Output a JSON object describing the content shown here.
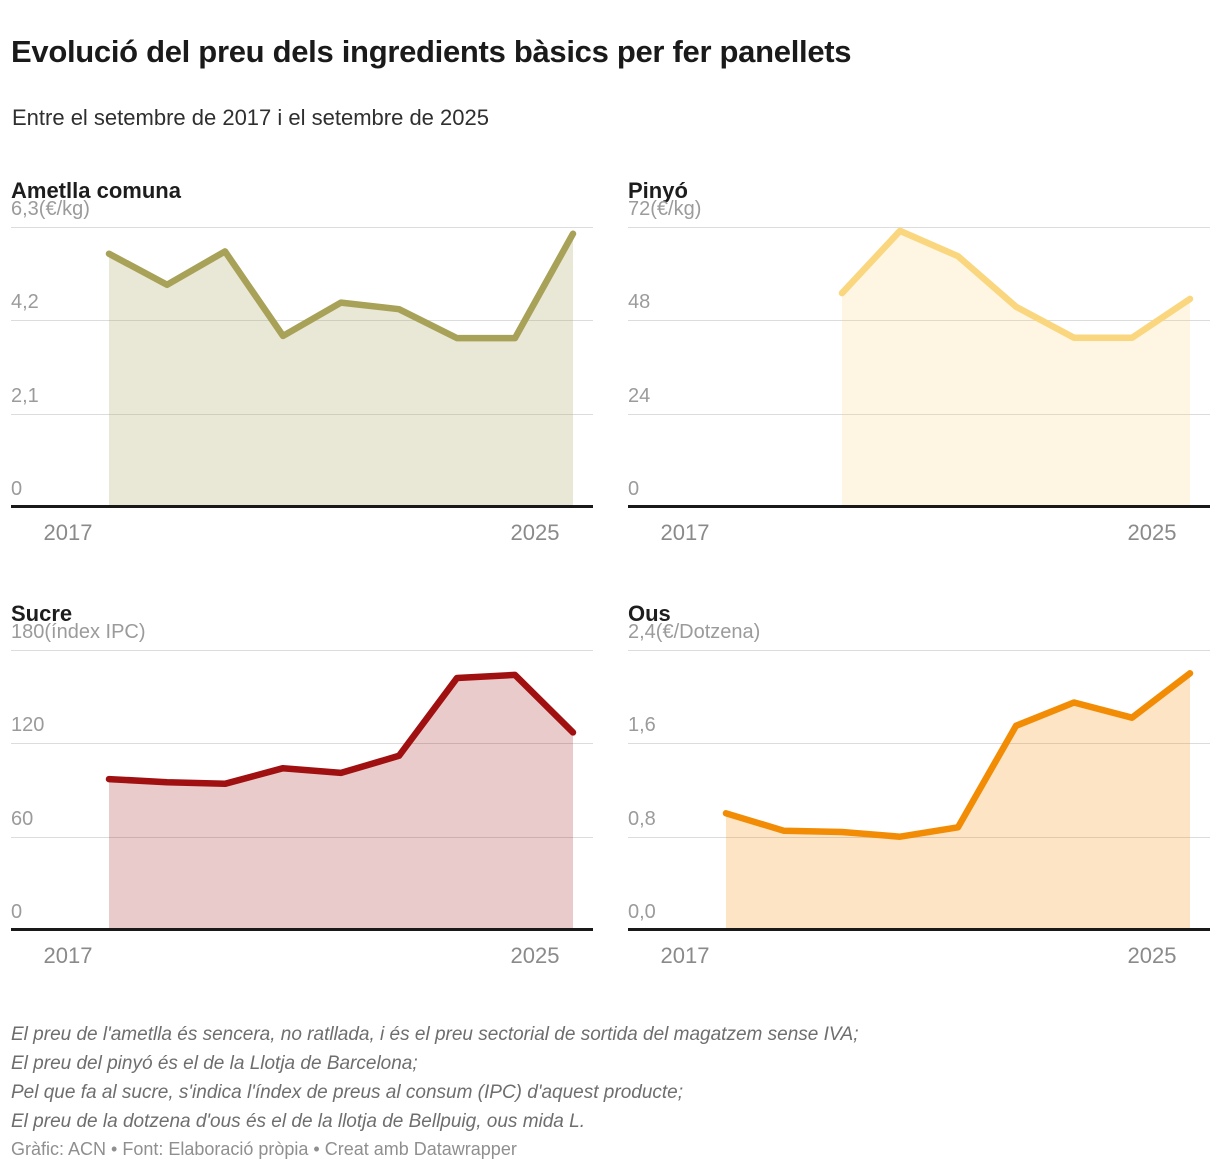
{
  "header": {
    "title": "Evolució del preu dels ingredients bàsics per fer panellets",
    "subtitle": "Entre el setembre de 2017 i el setembre de 2025"
  },
  "chart_data": [
    {
      "id": "ametlla-comuna",
      "type": "area",
      "title": "Ametlla comuna",
      "unit": "€/kg",
      "ylabel": "6,3(€/kg)",
      "y_ticks": [
        0,
        2.1,
        4.2,
        6.3
      ],
      "y_tick_labels": [
        "0",
        "2,1",
        "4,2",
        "6,3(€/kg)"
      ],
      "ylim": [
        0,
        6.3
      ],
      "x_years": [
        2017,
        2018,
        2019,
        2020,
        2021,
        2022,
        2023,
        2024,
        2025
      ],
      "values": [
        5.7,
        5.0,
        5.75,
        3.85,
        4.6,
        4.45,
        3.8,
        3.8,
        6.15
      ],
      "x_tick_labels": [
        "2017",
        "2025"
      ],
      "line_color": "#a8a158",
      "fill_color": "rgba(168,161,88,0.25)",
      "grid": true
    },
    {
      "id": "pinyo",
      "type": "area",
      "title": "Pinyó",
      "unit": "€/kg",
      "ylabel": "72(€/kg)",
      "y_ticks": [
        0,
        24,
        48,
        72
      ],
      "y_tick_labels": [
        "0",
        "24",
        "48",
        "72(€/kg)"
      ],
      "ylim": [
        0,
        72
      ],
      "x_years": [
        2019,
        2020,
        2021,
        2022,
        2023,
        2024,
        2025
      ],
      "values": [
        55,
        71,
        64.5,
        51.5,
        43.5,
        43.5,
        53.5
      ],
      "x_tick_labels": [
        "2017",
        "2025"
      ],
      "line_color": "#fad77f",
      "fill_color": "rgba(250,215,127,0.22)",
      "grid": true
    },
    {
      "id": "sucre",
      "type": "area",
      "title": "Sucre",
      "unit": "índex IPC",
      "ylabel": "180(índex IPC)",
      "y_ticks": [
        0,
        60,
        120,
        180
      ],
      "y_tick_labels": [
        "0",
        "60",
        "120",
        "180(índex IPC)"
      ],
      "ylim": [
        0,
        180
      ],
      "x_years": [
        2017,
        2018,
        2019,
        2020,
        2021,
        2022,
        2023,
        2024,
        2025
      ],
      "values": [
        97,
        95,
        94,
        104,
        101,
        112,
        162,
        164,
        127
      ],
      "x_tick_labels": [
        "2017",
        "2025"
      ],
      "line_color": "#a01010",
      "fill_color": "rgba(160,16,16,0.22)",
      "grid": true
    },
    {
      "id": "ous",
      "type": "area",
      "title": "Ous",
      "unit": "€/Dotzena",
      "ylabel": "2,4(€/Dotzena)",
      "y_ticks": [
        0.0,
        0.8,
        1.6,
        2.4
      ],
      "y_tick_labels": [
        "0,0",
        "0,8",
        "1,6",
        "2,4(€/Dotzena)"
      ],
      "ylim": [
        0,
        2.4
      ],
      "x_years": [
        2017,
        2018,
        2019,
        2020,
        2021,
        2022,
        2023,
        2024,
        2025
      ],
      "values": [
        1.0,
        0.85,
        0.84,
        0.8,
        0.88,
        1.75,
        1.95,
        1.82,
        2.2
      ],
      "x_tick_labels": [
        "2017",
        "2025"
      ],
      "line_color": "#f28c05",
      "fill_color": "rgba(242,140,5,0.23)",
      "grid": true
    }
  ],
  "footnotes": [
    "El preu de l'ametlla és sencera, no ratllada, i és el preu sectorial de sortida del magatzem sense IVA;",
    "El preu del pinyó és el de la Llotja de Barcelona;",
    "Pel que fa al sucre, s'indica l'índex de preus al consum (IPC) d'aquest producte;",
    "El preu de la dotzena d'ous és el de la llotja de Bellpuig, ous mida L."
  ],
  "attribution": "Gràfic: ACN • Font: Elaboració pròpia • Creat amb Datawrapper"
}
